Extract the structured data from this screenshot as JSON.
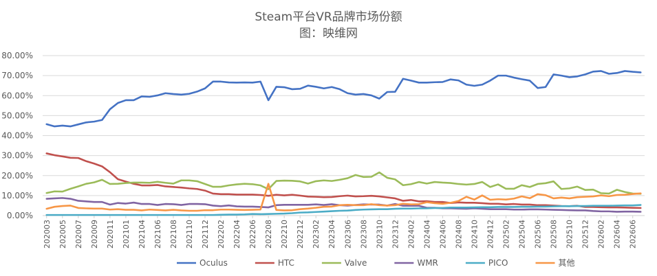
{
  "chart_data": {
    "type": "line",
    "title": "Steam平台VR品牌市场份额",
    "subtitle": "图：映维网",
    "xlabel": "",
    "ylabel": "",
    "ylim": [
      0,
      80
    ],
    "y_ticks": [
      "0.00%",
      "10.00%",
      "20.00%",
      "30.00%",
      "40.00%",
      "50.00%",
      "60.00%",
      "70.00%",
      "80.00%"
    ],
    "x_tick_labels": [
      "202003",
      "202005",
      "202007",
      "202009",
      "202011",
      "202101",
      "202104",
      "202106",
      "202108",
      "202110",
      "202112",
      "202202",
      "202204",
      "202206",
      "202208",
      "202210",
      "202212",
      "202302",
      "202304",
      "202306",
      "202308",
      "202310",
      "202312",
      "202402",
      "202404",
      "202406",
      "202408",
      "202410",
      "202412",
      "202502",
      "202504",
      "202506",
      "202508",
      "202510",
      "202512",
      "202602",
      "202604",
      "202606"
    ],
    "grid": true,
    "legend_position": "bottom",
    "series": [
      {
        "name": "Oculus",
        "color": "#4472C4",
        "values": [
          45.7,
          44.6,
          45.0,
          44.6,
          45.6,
          46.6,
          47.0,
          47.8,
          53.2,
          56.3,
          57.7,
          57.7,
          59.6,
          59.4,
          60.1,
          61.2,
          60.8,
          60.5,
          60.9,
          62.0,
          63.6,
          67.0,
          67.0,
          66.6,
          66.5,
          66.6,
          66.5,
          67.0,
          57.7,
          64.4,
          64.2,
          63.2,
          63.4,
          65.0,
          64.4,
          63.6,
          64.3,
          63.2,
          61.2,
          60.5,
          60.8,
          60.1,
          58.5,
          61.8,
          61.9,
          68.4,
          67.5,
          66.5,
          66.5,
          66.7,
          66.8,
          68.1,
          67.6,
          65.5,
          64.9,
          65.5,
          67.5,
          70.0,
          70.0,
          69.0,
          68.2,
          67.5,
          63.8,
          64.3,
          70.6,
          70.0,
          69.2,
          69.6,
          70.6,
          72.0,
          72.3,
          70.9,
          71.3,
          72.3,
          71.9,
          71.6
        ]
      },
      {
        "name": "HTC",
        "color": "#C0504D",
        "values": [
          31.1,
          30.2,
          29.6,
          28.9,
          28.8,
          27.2,
          26.0,
          24.6,
          21.7,
          18.2,
          17.0,
          15.9,
          15.1,
          15.1,
          15.3,
          14.6,
          14.3,
          14.0,
          13.6,
          13.3,
          12.5,
          11.0,
          10.7,
          10.7,
          10.5,
          10.5,
          10.5,
          10.3,
          9.9,
          10.4,
          10.1,
          10.4,
          10.0,
          9.5,
          9.4,
          9.2,
          9.3,
          9.7,
          10.0,
          9.6,
          9.7,
          9.9,
          9.6,
          9.1,
          8.6,
          7.4,
          7.8,
          7.1,
          7.2,
          6.8,
          6.8,
          6.3,
          6.6,
          6.4,
          6.4,
          6.2,
          5.9,
          5.9,
          5.6,
          5.8,
          5.5,
          5.5,
          5.2,
          5.2,
          5.0,
          4.8,
          4.7,
          4.9,
          4.3,
          4.3,
          4.2,
          4.1,
          4.1,
          4.0,
          3.9,
          3.8
        ]
      },
      {
        "name": "Valve",
        "color": "#9BBB59",
        "values": [
          11.3,
          12.1,
          12.0,
          13.4,
          14.6,
          15.9,
          16.6,
          17.9,
          15.8,
          15.9,
          16.3,
          16.5,
          16.5,
          16.4,
          16.9,
          16.4,
          16.0,
          17.6,
          17.6,
          17.2,
          15.8,
          14.4,
          14.4,
          15.1,
          15.6,
          15.9,
          15.7,
          15.1,
          13.2,
          17.3,
          17.5,
          17.4,
          17.1,
          16.0,
          17.2,
          17.6,
          17.3,
          17.9,
          18.7,
          20.3,
          19.3,
          19.4,
          21.6,
          18.9,
          18.1,
          15.2,
          15.7,
          16.8,
          16.0,
          16.8,
          16.5,
          16.3,
          15.8,
          15.5,
          15.8,
          16.8,
          14.3,
          15.6,
          13.4,
          13.4,
          15.2,
          14.3,
          15.8,
          16.2,
          17.1,
          13.3,
          13.6,
          14.5,
          12.8,
          13.0,
          11.2,
          11.0,
          12.9,
          11.8,
          11.0,
          10.9
        ]
      },
      {
        "name": "WMR",
        "color": "#8064A2",
        "values": [
          8.4,
          8.6,
          8.8,
          8.4,
          7.4,
          7.1,
          6.8,
          6.8,
          5.5,
          6.3,
          6.0,
          6.5,
          5.8,
          5.8,
          5.3,
          5.8,
          5.7,
          5.3,
          5.8,
          5.8,
          5.7,
          5.0,
          4.7,
          5.1,
          4.6,
          4.5,
          4.5,
          4.3,
          4.1,
          5.2,
          5.4,
          5.4,
          5.4,
          5.4,
          5.6,
          5.3,
          5.7,
          5.2,
          5.0,
          5.3,
          5.6,
          5.5,
          5.5,
          5.0,
          5.8,
          4.9,
          4.9,
          4.9,
          3.9,
          3.9,
          3.6,
          3.6,
          3.5,
          3.4,
          3.6,
          3.4,
          3.2,
          3.2,
          3.2,
          3.0,
          3.0,
          3.1,
          3.1,
          3.0,
          2.9,
          2.8,
          2.7,
          2.6,
          2.6,
          2.3,
          2.1,
          2.1,
          1.9,
          2.0,
          2.0,
          1.9
        ]
      },
      {
        "name": "PICO",
        "color": "#4BACC6",
        "values": [
          0.3,
          0.3,
          0.3,
          0.3,
          0.3,
          0.3,
          0.3,
          0.3,
          0.3,
          0.3,
          0.3,
          0.3,
          0.3,
          0.3,
          0.3,
          0.3,
          0.3,
          0.3,
          0.3,
          0.3,
          0.3,
          0.3,
          0.4,
          0.5,
          0.5,
          0.6,
          0.8,
          0.7,
          0.8,
          0.9,
          1.0,
          1.2,
          1.5,
          1.6,
          1.8,
          2.0,
          2.2,
          2.4,
          2.5,
          2.8,
          3.0,
          3.1,
          3.2,
          3.2,
          3.4,
          3.5,
          3.5,
          3.6,
          3.6,
          3.8,
          3.8,
          4.0,
          4.0,
          4.0,
          4.1,
          4.2,
          4.2,
          4.3,
          4.3,
          4.3,
          4.4,
          4.4,
          4.5,
          4.5,
          4.6,
          4.7,
          4.7,
          4.8,
          4.8,
          4.9,
          4.9,
          4.9,
          5.0,
          5.1,
          5.1,
          5.3
        ]
      },
      {
        "name": "其他",
        "color": "#F79646",
        "values": [
          3.4,
          4.4,
          4.8,
          5.0,
          3.8,
          3.6,
          3.5,
          3.5,
          3.0,
          3.2,
          2.9,
          2.9,
          2.6,
          3.0,
          2.8,
          2.6,
          2.9,
          2.6,
          2.4,
          2.4,
          2.7,
          2.7,
          3.0,
          3.0,
          2.9,
          2.8,
          2.9,
          3.0,
          15.9,
          2.8,
          2.6,
          2.7,
          3.2,
          3.5,
          3.9,
          4.4,
          4.5,
          5.2,
          5.4,
          5.2,
          5.2,
          5.7,
          5.2,
          5.0,
          5.2,
          5.9,
          5.6,
          5.7,
          6.7,
          6.2,
          5.9,
          6.4,
          7.3,
          9.4,
          8.0,
          10.1,
          7.9,
          8.2,
          8.0,
          8.5,
          9.6,
          8.7,
          10.7,
          10.2,
          8.6,
          9.0,
          8.6,
          9.2,
          9.4,
          9.6,
          10.1,
          9.7,
          10.3,
          10.4,
          10.8,
          11.1
        ]
      }
    ]
  }
}
